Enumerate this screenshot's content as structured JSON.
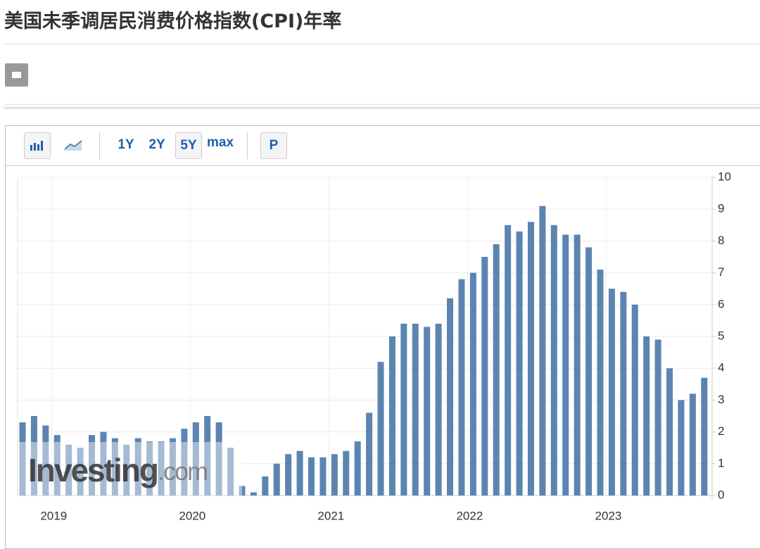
{
  "page_title": "美国未季调居民消费价格指数(CPI)年率",
  "toolbar": {
    "ranges": [
      "1Y",
      "2Y",
      "5Y",
      "max"
    ],
    "active_range": "5Y",
    "extra": "P"
  },
  "chart_data": {
    "type": "bar",
    "categories": [
      null,
      null,
      null,
      "2019",
      null,
      null,
      null,
      null,
      null,
      null,
      null,
      null,
      null,
      null,
      null,
      "2020",
      null,
      null,
      null,
      null,
      null,
      null,
      null,
      null,
      null,
      null,
      null,
      "2021",
      null,
      null,
      null,
      null,
      null,
      null,
      null,
      null,
      null,
      null,
      null,
      "2022",
      null,
      null,
      null,
      null,
      null,
      null,
      null,
      null,
      null,
      null,
      null,
      "2023",
      null,
      null,
      null,
      null,
      null,
      null,
      null,
      null
    ],
    "values": [
      2.3,
      2.5,
      2.2,
      1.9,
      1.6,
      1.5,
      1.9,
      2.0,
      1.8,
      1.6,
      1.8,
      1.7,
      1.7,
      1.8,
      2.1,
      2.3,
      2.5,
      2.3,
      1.5,
      0.3,
      0.1,
      0.6,
      1.0,
      1.3,
      1.4,
      1.2,
      1.2,
      1.3,
      1.4,
      1.7,
      2.6,
      4.2,
      5.0,
      5.4,
      5.4,
      5.3,
      5.4,
      6.2,
      6.8,
      7.0,
      7.5,
      7.9,
      8.5,
      8.3,
      8.6,
      9.1,
      8.5,
      8.2,
      8.2,
      7.8,
      7.1,
      6.5,
      6.4,
      6.0,
      5.0,
      4.9,
      4.0,
      3.0,
      3.2,
      3.7
    ],
    "color": "#5b84b1",
    "ylim": [
      0,
      10
    ],
    "yticks": [
      0,
      1,
      2,
      3,
      4,
      5,
      6,
      7,
      8,
      9,
      10
    ],
    "grid": true,
    "watermark": [
      "Investing",
      ".com"
    ]
  }
}
